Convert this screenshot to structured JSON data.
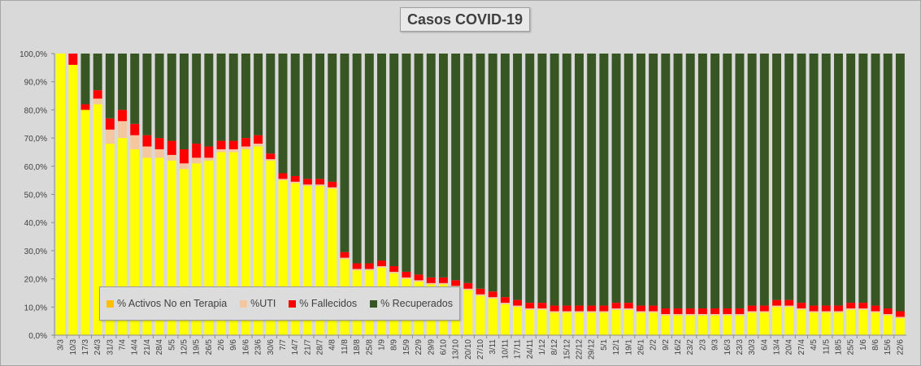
{
  "chart_data": {
    "type": "bar",
    "stacked": true,
    "title": "Casos  COVID-19",
    "xlabel": "",
    "ylabel": "",
    "ylim": [
      0,
      100
    ],
    "y_ticks": [
      "0,0%",
      "10,0%",
      "20,0%",
      "30,0%",
      "40,0%",
      "50,0%",
      "60,0%",
      "70,0%",
      "80,0%",
      "90,0%",
      "100,0%"
    ],
    "grid": false,
    "legend_position": "bottom-left inside",
    "x_ticks": [
      "3/3",
      "10/3",
      "17/3",
      "24/3",
      "31/3",
      "7/4",
      "14/4",
      "21/4",
      "28/4",
      "5/5",
      "12/5",
      "19/5",
      "26/5",
      "2/6",
      "9/6",
      "16/6",
      "23/6",
      "30/6",
      "7/7",
      "14/7",
      "21/7",
      "28/7",
      "4/8",
      "11/8",
      "18/8",
      "25/8",
      "1/9",
      "8/9",
      "15/9",
      "22/9",
      "29/9",
      "6/10",
      "13/10",
      "20/10",
      "27/10",
      "3/11",
      "10/11",
      "17/11",
      "24/11",
      "1/12",
      "8/12",
      "15/12",
      "22/12",
      "29/12",
      "5/1",
      "12/1",
      "19/1",
      "26/1",
      "2/2",
      "9/2",
      "16/2",
      "23/2",
      "2/3",
      "9/3",
      "16/3",
      "23/3",
      "30/3",
      "6/4",
      "13/4",
      "20/4",
      "27/4",
      "4/5",
      "11/5",
      "18/5",
      "25/5",
      "1/6",
      "8/6",
      "15/6",
      "22/6"
    ],
    "series": [
      {
        "name": "% Activos No en Terapia",
        "color": "#ffff00",
        "values": [
          100,
          96,
          80,
          82,
          68,
          70,
          66,
          63,
          63,
          62,
          59,
          61,
          62,
          65,
          65,
          66,
          67,
          62,
          55,
          54,
          53,
          53,
          52,
          27,
          23,
          23,
          24,
          22,
          20,
          19,
          18,
          18,
          17,
          16,
          14,
          13,
          11,
          10,
          9,
          9,
          8,
          8,
          8,
          8,
          8,
          9,
          9,
          8,
          8,
          7,
          7,
          7,
          7,
          7,
          7,
          7,
          8,
          8,
          10,
          10,
          9,
          8,
          8,
          8,
          9,
          9,
          8,
          7,
          6
        ]
      },
      {
        "name": "%UTI",
        "color": "#f4c7a1",
        "values": [
          0,
          0,
          0,
          2,
          5,
          6,
          5,
          4,
          3,
          2,
          2,
          2,
          1,
          1,
          1,
          1,
          1,
          0.5,
          0.5,
          0.5,
          0.5,
          0.5,
          0.5,
          0.5,
          0.5,
          0.5,
          0.5,
          0.5,
          0.5,
          0.5,
          0.5,
          0.5,
          0.5,
          0.5,
          0.5,
          0.5,
          0.5,
          0.5,
          0.5,
          0.5,
          0.5,
          0.5,
          0.5,
          0.5,
          0.5,
          0.5,
          0.5,
          0.5,
          0.5,
          0.5,
          0.5,
          0.5,
          0.5,
          0.5,
          0.5,
          0.5,
          0.5,
          0.5,
          0.5,
          0.5,
          0.5,
          0.5,
          0.5,
          0.5,
          0.5,
          0.5,
          0.5,
          0.5,
          0.5
        ]
      },
      {
        "name": "% Fallecidos",
        "color": "#ff0000",
        "values": [
          0,
          4,
          2,
          3,
          4,
          4,
          4,
          4,
          4,
          5,
          5,
          5,
          4,
          3,
          3,
          3,
          3,
          2,
          2,
          2,
          2,
          2,
          2,
          2,
          2,
          2,
          2,
          2,
          2,
          2,
          2,
          2,
          2,
          2,
          2,
          2,
          2,
          2,
          2,
          2,
          2,
          2,
          2,
          2,
          2,
          2,
          2,
          2,
          2,
          2,
          2,
          2,
          2,
          2,
          2,
          2,
          2,
          2,
          2,
          2,
          2,
          2,
          2,
          2,
          2,
          2,
          2,
          2,
          2
        ]
      },
      {
        "name": "% Recuperados",
        "color": "#375623",
        "values": [
          0,
          0,
          18,
          13,
          23,
          20,
          25,
          29,
          30,
          31,
          34,
          32,
          33,
          31,
          31,
          30,
          29,
          35.5,
          42.5,
          43.5,
          44.5,
          44.5,
          45.5,
          70.5,
          74.5,
          74.5,
          73.5,
          75.5,
          77.5,
          78.5,
          79.5,
          79.5,
          80.5,
          81.5,
          83.5,
          84.5,
          86.5,
          87.5,
          88.5,
          88.5,
          89.5,
          89.5,
          89.5,
          89.5,
          89.5,
          88.5,
          88.5,
          89.5,
          89.5,
          90.5,
          90.5,
          90.5,
          90.5,
          90.5,
          90.5,
          90.5,
          89.5,
          89.5,
          87.5,
          87.5,
          88.5,
          89.5,
          89.5,
          89.5,
          88.5,
          88.5,
          89.5,
          90.5,
          91.5
        ]
      }
    ]
  }
}
